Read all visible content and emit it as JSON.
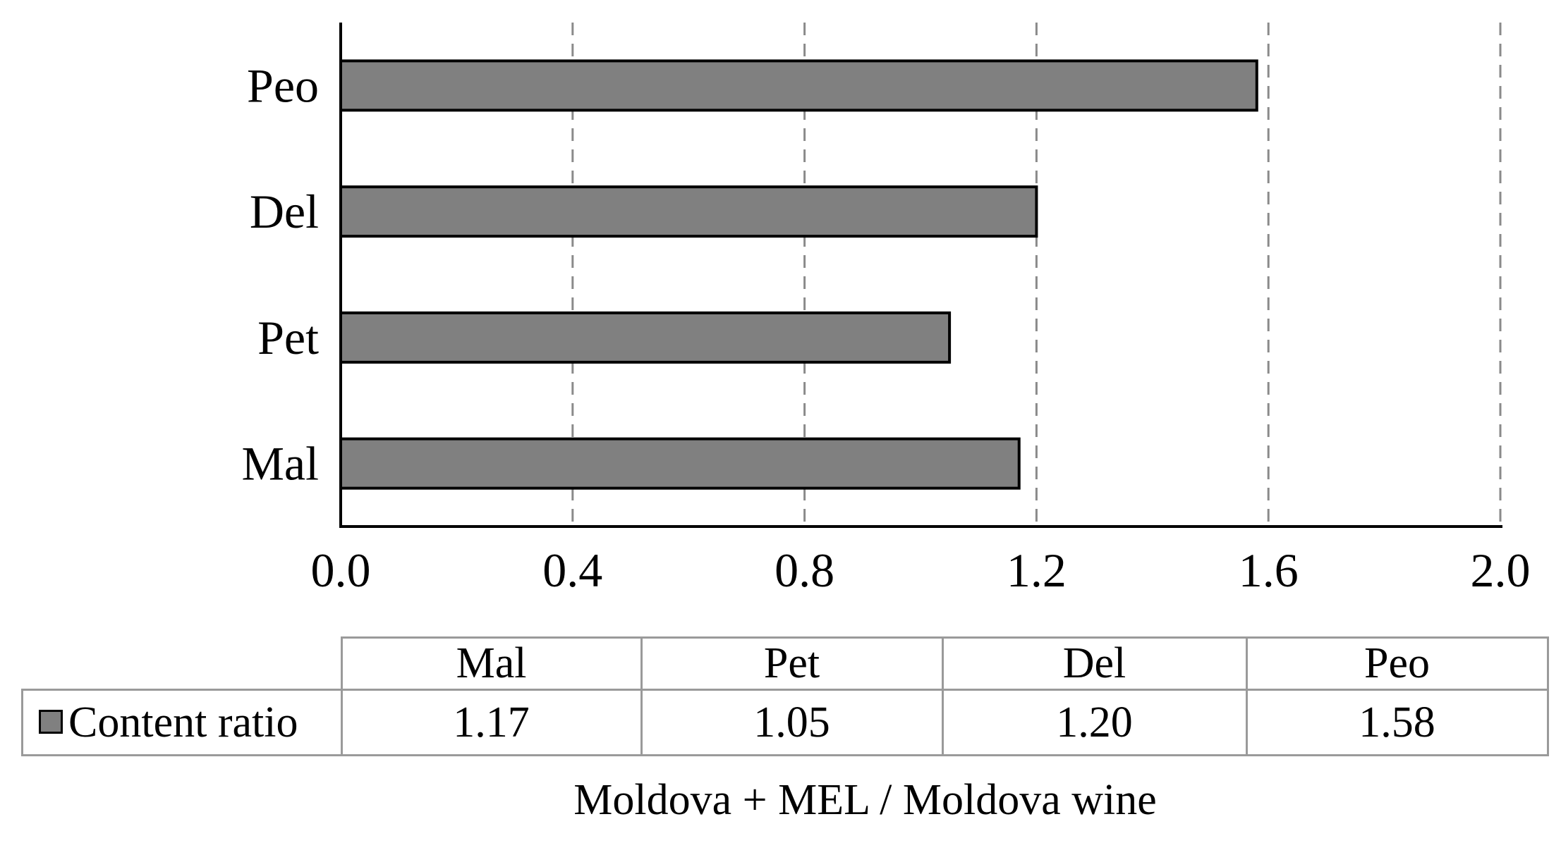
{
  "chart_data": {
    "type": "bar",
    "orientation": "horizontal",
    "categories": [
      "Mal",
      "Pet",
      "Del",
      "Peo"
    ],
    "series": [
      {
        "name": "Content ratio",
        "values": [
          1.17,
          1.05,
          1.2,
          1.58
        ],
        "color": "#808080"
      }
    ],
    "xlabel": "Moldova + MEL / Moldova wine",
    "xlim": [
      0.0,
      2.0
    ],
    "xticks": [
      "0.0",
      "0.4",
      "0.8",
      "1.2",
      "1.6",
      "2.0"
    ],
    "grid": "vertical dashed",
    "legend": "in data table",
    "data_table": {
      "headers": [
        "Mal",
        "Pet",
        "Del",
        "Peo"
      ],
      "row_label": "Content ratio",
      "values": [
        "1.17",
        "1.05",
        "1.20",
        "1.58"
      ]
    }
  }
}
